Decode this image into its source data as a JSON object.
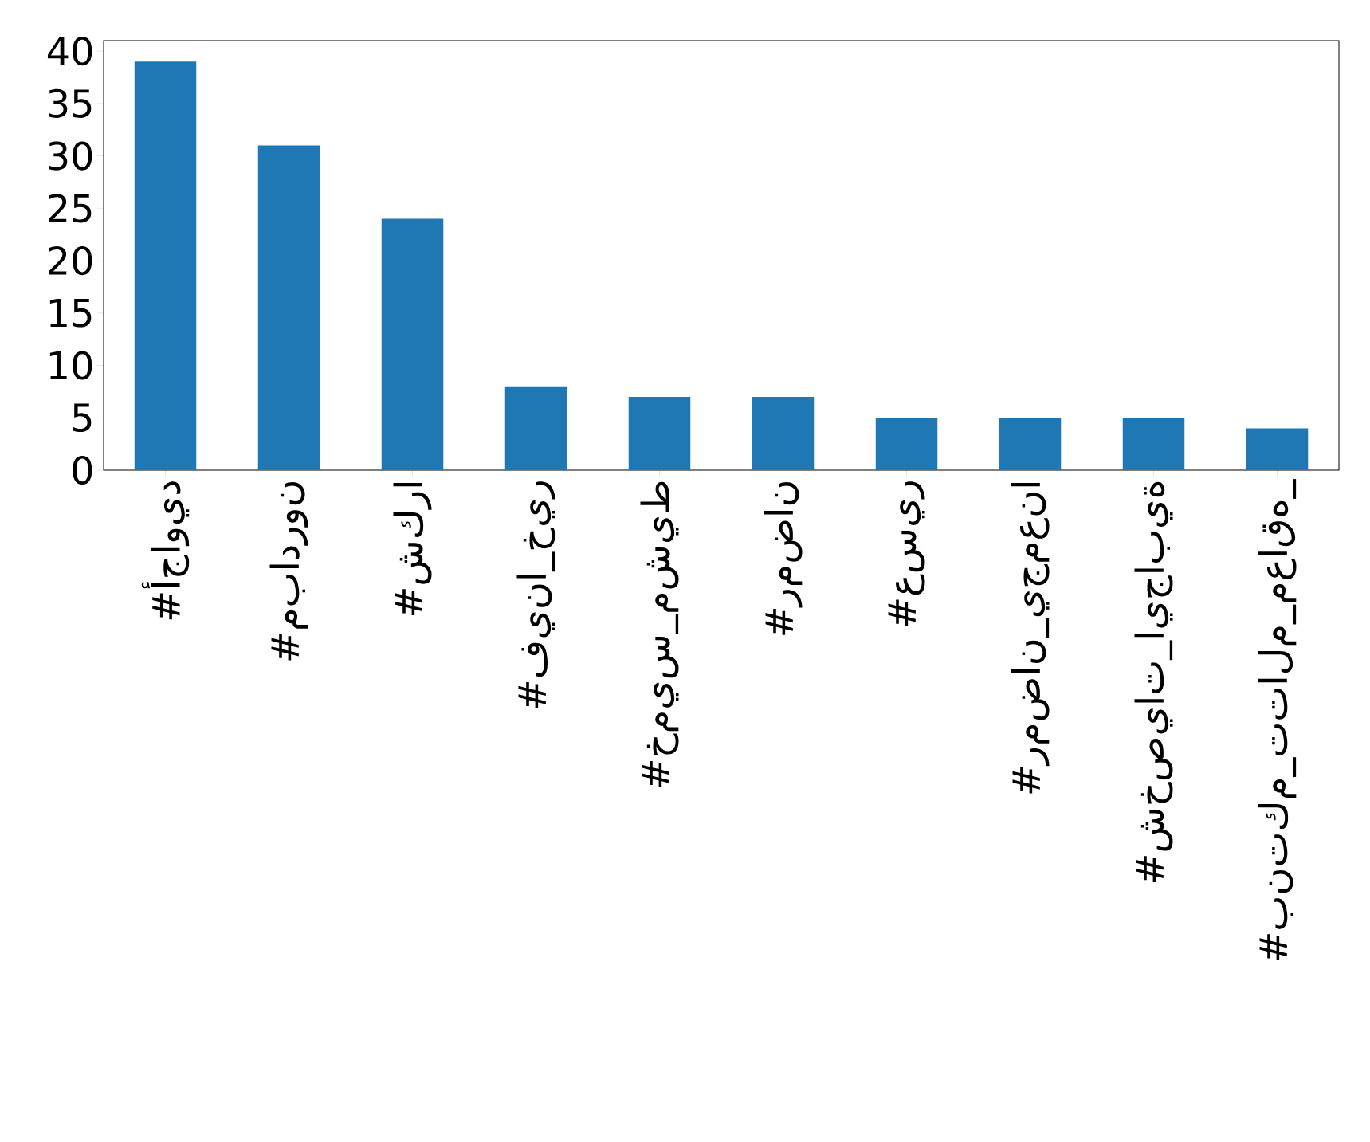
{
  "chart_data": {
    "type": "bar",
    "categories": [
      "#أجاويد",
      "#مبادرون",
      "#شكرا",
      "#فينا_خير",
      "#خميس_مشيط",
      "#رمضان",
      "#عسير",
      "#رمضان_يجمعنا",
      "#شخصيات_ايجابية",
      "#بنتكم_تتالم_معاقه_"
    ],
    "values": [
      39,
      31,
      24,
      8,
      7,
      7,
      5,
      5,
      5,
      4
    ],
    "color": "#1f77b4",
    "ylim": [
      0,
      41
    ],
    "yticks": [
      0,
      5,
      10,
      15,
      20,
      25,
      30,
      35,
      40
    ]
  }
}
